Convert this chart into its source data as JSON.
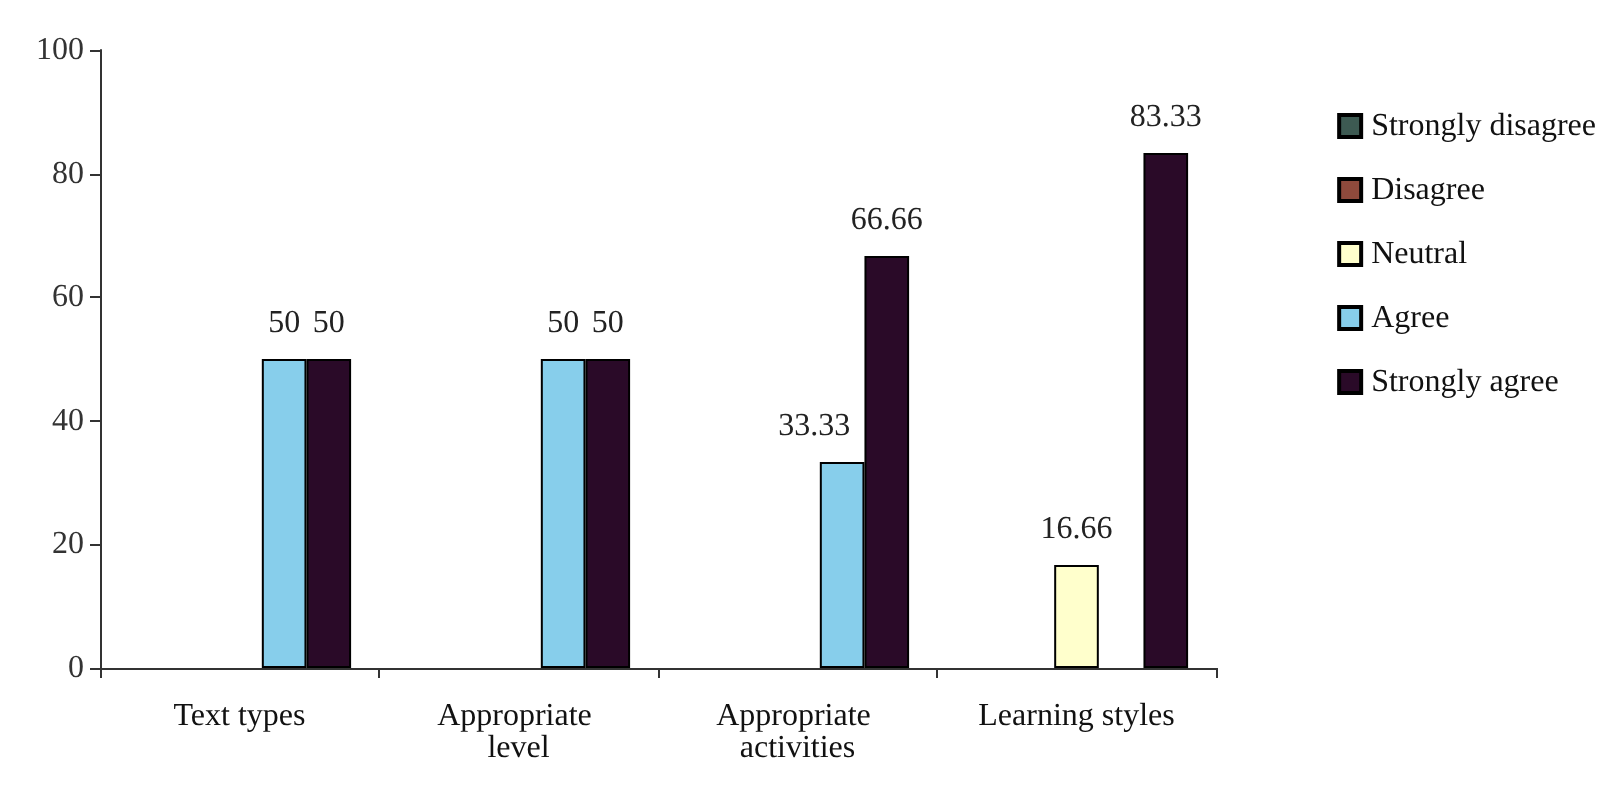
{
  "chart_data": {
    "type": "bar",
    "categories": [
      "Text types",
      "Appropriate level",
      "Appropriate activities",
      "Learning styles"
    ],
    "series": [
      {
        "name": "Strongly disagree",
        "color": "#3d5a52",
        "values": [
          null,
          null,
          null,
          null
        ],
        "value_labels": [
          null,
          null,
          null,
          null
        ]
      },
      {
        "name": "Disagree",
        "color": "#8e4a3c",
        "values": [
          null,
          null,
          null,
          null
        ],
        "value_labels": [
          null,
          null,
          null,
          null
        ]
      },
      {
        "name": "Neutral",
        "color": "#ffffcc",
        "values": [
          null,
          null,
          null,
          16.66
        ],
        "value_labels": [
          null,
          null,
          null,
          "16.66"
        ]
      },
      {
        "name": "Agree",
        "color": "#87ceeb",
        "values": [
          50,
          50,
          33.33,
          null
        ],
        "value_labels": [
          "50",
          "50",
          "33.33",
          null
        ]
      },
      {
        "name": "Strongly agree",
        "color": "#2a0a28",
        "values": [
          50,
          50,
          66.66,
          83.33
        ],
        "value_labels": [
          "50",
          "50",
          "66.66",
          "83.33"
        ]
      }
    ],
    "ylim": [
      0,
      100
    ],
    "yticks": [
      0,
      20,
      40,
      60,
      80,
      100
    ],
    "grid": false,
    "legend": "right"
  }
}
